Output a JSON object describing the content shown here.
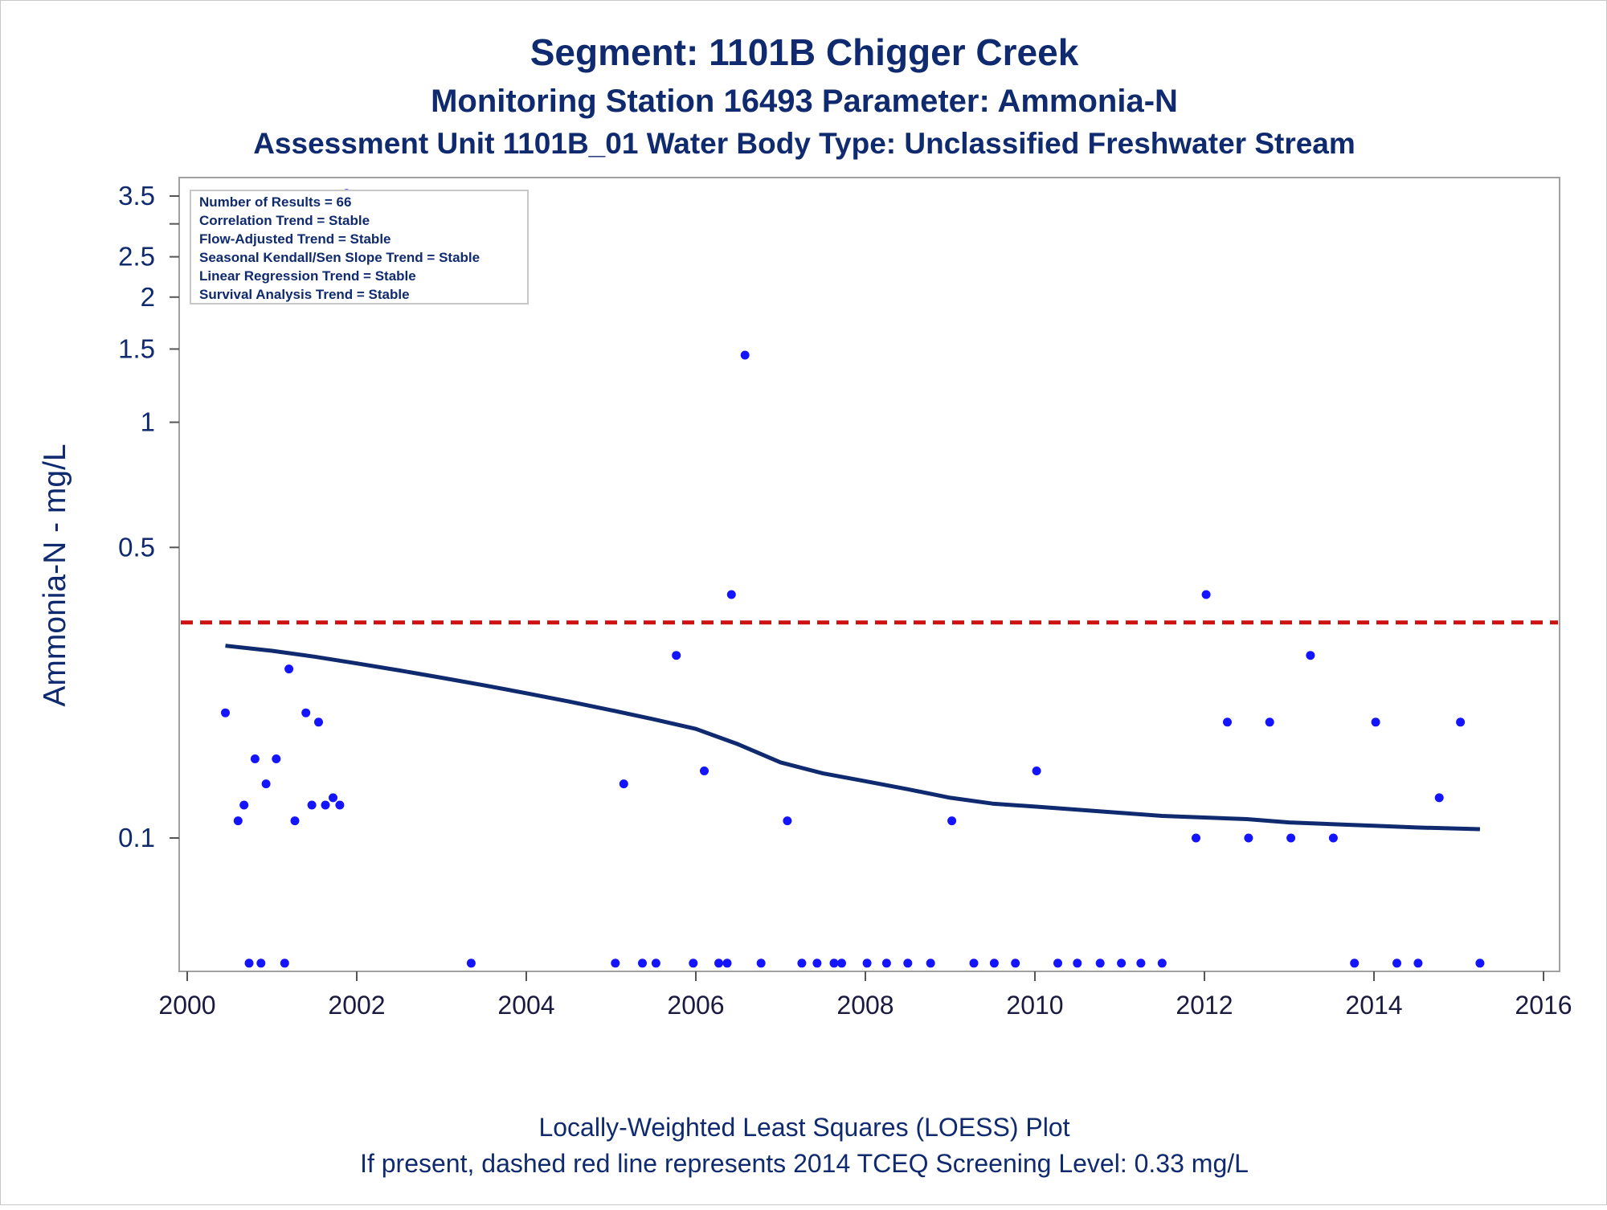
{
  "titles": {
    "line1": "Segment: 1101B  Chigger Creek",
    "line2": "Monitoring Station 16493 Parameter: Ammonia-N",
    "line3": "Assessment Unit 1101B_01   Water Body Type: Unclassified Freshwater Stream"
  },
  "stats_box": [
    "Number of Results = 66",
    "Correlation Trend = Stable",
    "Flow-Adjusted Trend = Stable",
    "Seasonal Kendall/Sen Slope Trend = Stable",
    "Linear Regression Trend = Stable",
    "Survival Analysis Trend = Stable"
  ],
  "footnotes": {
    "line1": "Locally-Weighted Least Squares (LOESS) Plot",
    "line2": "If present, dashed red line represents 2014 TCEQ Screening Level: 0.33 mg/L"
  },
  "colors": {
    "points": "#1414ff",
    "loess": "#0f2a6e",
    "screening": "#cc1111",
    "text": "#0f2a6e",
    "frame": "#a0a0a0"
  },
  "chart_data": {
    "type": "scatter",
    "ylabel": "Ammonia-N - mg/L",
    "xlim": [
      2000,
      2016
    ],
    "ylim": [
      0.05,
      3.6
    ],
    "y_scale": "log",
    "x_ticks": [
      2000,
      2002,
      2004,
      2006,
      2008,
      2010,
      2012,
      2014,
      2016
    ],
    "y_ticks": [
      {
        "value": 3.5,
        "label": "3.5"
      },
      {
        "value": 3.0,
        "label": ""
      },
      {
        "value": 2.5,
        "label": "2.5"
      },
      {
        "value": 2.0,
        "label": "2"
      },
      {
        "value": 1.5,
        "label": "1.5"
      },
      {
        "value": 1.0,
        "label": "1"
      },
      {
        "value": 0.5,
        "label": "0.5"
      },
      {
        "value": 0.1,
        "label": "0.1"
      }
    ],
    "screening_level": 0.33,
    "series": [
      {
        "points": [
          [
            2000.45,
            0.2
          ],
          [
            2000.6,
            0.11
          ],
          [
            2000.67,
            0.12
          ],
          [
            2000.73,
            0.05
          ],
          [
            2000.8,
            0.155
          ],
          [
            2000.87,
            0.05
          ],
          [
            2000.93,
            0.135
          ],
          [
            2001.05,
            0.155
          ],
          [
            2001.15,
            0.05
          ],
          [
            2001.2,
            0.255
          ],
          [
            2001.27,
            0.11
          ],
          [
            2001.4,
            0.2
          ],
          [
            2001.47,
            0.12
          ],
          [
            2001.55,
            0.19
          ],
          [
            2001.63,
            0.12
          ],
          [
            2001.72,
            0.125
          ],
          [
            2001.8,
            0.12
          ],
          [
            2001.88,
            3.55
          ],
          [
            2003.35,
            0.05
          ],
          [
            2005.05,
            0.05
          ],
          [
            2005.15,
            0.135
          ],
          [
            2005.37,
            0.05
          ],
          [
            2005.53,
            0.05
          ],
          [
            2005.77,
            0.275
          ],
          [
            2005.97,
            0.05
          ],
          [
            2006.1,
            0.145
          ],
          [
            2006.27,
            0.05
          ],
          [
            2006.37,
            0.05
          ],
          [
            2006.42,
            0.385
          ],
          [
            2006.58,
            1.45
          ],
          [
            2006.77,
            0.05
          ],
          [
            2007.08,
            0.11
          ],
          [
            2007.25,
            0.05
          ],
          [
            2007.43,
            0.05
          ],
          [
            2007.63,
            0.05
          ],
          [
            2007.72,
            0.05
          ],
          [
            2008.02,
            0.05
          ],
          [
            2008.25,
            0.05
          ],
          [
            2008.5,
            0.05
          ],
          [
            2008.77,
            0.05
          ],
          [
            2009.02,
            0.11
          ],
          [
            2009.28,
            0.05
          ],
          [
            2009.52,
            0.05
          ],
          [
            2009.77,
            0.05
          ],
          [
            2010.02,
            0.145
          ],
          [
            2010.27,
            0.05
          ],
          [
            2010.5,
            0.05
          ],
          [
            2010.77,
            0.05
          ],
          [
            2011.02,
            0.05
          ],
          [
            2011.25,
            0.05
          ],
          [
            2011.5,
            0.05
          ],
          [
            2011.9,
            0.1
          ],
          [
            2012.02,
            0.385
          ],
          [
            2012.27,
            0.19
          ],
          [
            2012.52,
            0.1
          ],
          [
            2012.77,
            0.19
          ],
          [
            2013.02,
            0.1
          ],
          [
            2013.25,
            0.275
          ],
          [
            2013.52,
            0.1
          ],
          [
            2013.77,
            0.05
          ],
          [
            2014.02,
            0.19
          ],
          [
            2014.27,
            0.05
          ],
          [
            2014.52,
            0.05
          ],
          [
            2014.77,
            0.125
          ],
          [
            2015.02,
            0.19
          ],
          [
            2015.25,
            0.05
          ]
        ]
      },
      {
        "type": "line",
        "points": [
          [
            2000.45,
            0.29
          ],
          [
            2001.0,
            0.282
          ],
          [
            2001.5,
            0.273
          ],
          [
            2002.0,
            0.263
          ],
          [
            2002.5,
            0.253
          ],
          [
            2003.0,
            0.243
          ],
          [
            2003.5,
            0.233
          ],
          [
            2004.0,
            0.223
          ],
          [
            2004.5,
            0.213
          ],
          [
            2005.0,
            0.203
          ],
          [
            2005.5,
            0.193
          ],
          [
            2006.0,
            0.183
          ],
          [
            2006.5,
            0.168
          ],
          [
            2007.0,
            0.152
          ],
          [
            2007.5,
            0.143
          ],
          [
            2008.0,
            0.137
          ],
          [
            2008.5,
            0.131
          ],
          [
            2009.0,
            0.125
          ],
          [
            2009.5,
            0.121
          ],
          [
            2010.0,
            0.119
          ],
          [
            2010.5,
            0.117
          ],
          [
            2011.0,
            0.115
          ],
          [
            2011.5,
            0.113
          ],
          [
            2012.0,
            0.112
          ],
          [
            2012.5,
            0.111
          ],
          [
            2013.0,
            0.109
          ],
          [
            2013.5,
            0.108
          ],
          [
            2014.0,
            0.107
          ],
          [
            2014.5,
            0.106
          ],
          [
            2015.25,
            0.105
          ]
        ]
      }
    ]
  }
}
